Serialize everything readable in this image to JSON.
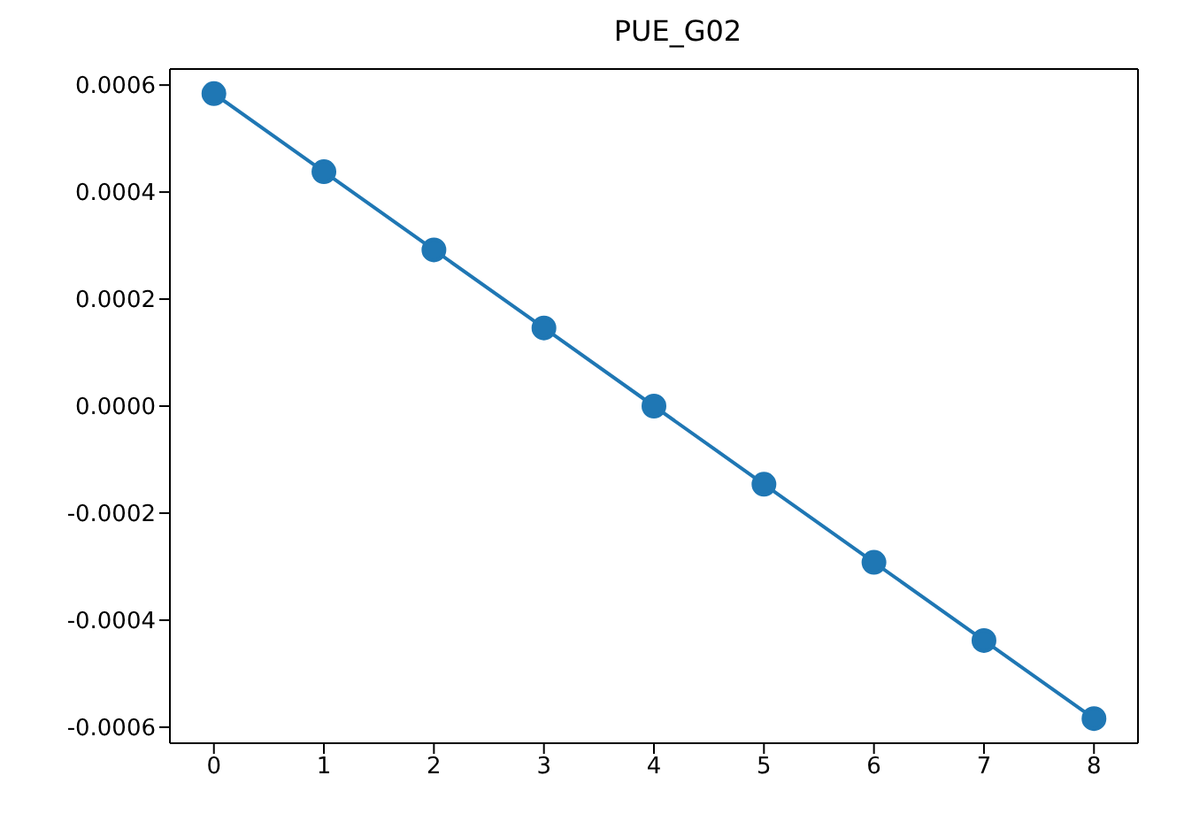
{
  "chart_data": {
    "type": "line",
    "title": "PUE_G02",
    "x": [
      0,
      1,
      2,
      3,
      4,
      5,
      6,
      7,
      8
    ],
    "series": [
      {
        "color": "#1f77b4",
        "values": [
          0.000584,
          0.000438,
          0.000292,
          0.000146,
          0,
          -0.000146,
          -0.000292,
          -0.000438,
          -0.000584
        ]
      }
    ],
    "xlim": [
      -0.4,
      8.4
    ],
    "xticks": [
      0,
      1,
      2,
      3,
      4,
      5,
      6,
      7,
      8
    ],
    "ylim": [
      -0.00063,
      0.00063
    ],
    "yticks": [
      {
        "value": -0.0006,
        "label": "-0.0006"
      },
      {
        "value": -0.0004,
        "label": "-0.0004"
      },
      {
        "value": -0.0002,
        "label": "-0.0002"
      },
      {
        "value": 0,
        "label": "0.0000"
      },
      {
        "value": 0.0002,
        "label": "0.0002"
      },
      {
        "value": 0.0004,
        "label": "0.0004"
      },
      {
        "value": 0.0006,
        "label": "0.0006"
      }
    ],
    "grid": false,
    "legend": false,
    "marker": "circle",
    "line_style": "solid"
  }
}
